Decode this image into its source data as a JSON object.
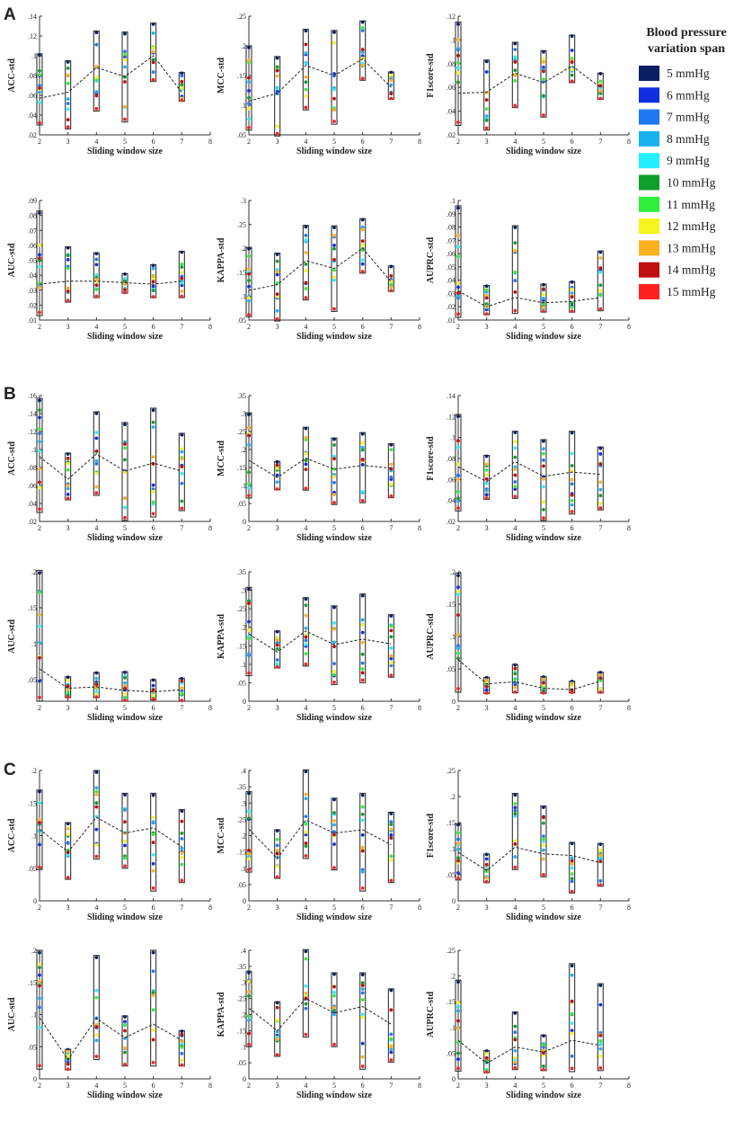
{
  "figure": {
    "panel_labels": [
      "A",
      "B",
      "C"
    ],
    "legend": {
      "title_line1": "Blood pressure",
      "title_line2": "variation span",
      "entries": [
        {
          "label": "5 mmHg",
          "color": "#0a1f64"
        },
        {
          "label": "6 mmHg",
          "color": "#1030e0"
        },
        {
          "label": "7 mmHg",
          "color": "#1f78f0"
        },
        {
          "label": "8 mmHg",
          "color": "#1ab2ee"
        },
        {
          "label": "9 mmHg",
          "color": "#22f0ff"
        },
        {
          "label": "10 mmHg",
          "color": "#0e9e2a"
        },
        {
          "label": "11 mmHg",
          "color": "#2ef03a"
        },
        {
          "label": "12 mmHg",
          "color": "#f6f61e"
        },
        {
          "label": "13 mmHg",
          "color": "#fbb11e"
        },
        {
          "label": "14 mmHg",
          "color": "#c00e0e"
        },
        {
          "label": "15 mmHg",
          "color": "#ff2020"
        }
      ]
    }
  },
  "chart_data": [
    {
      "panel": "A",
      "type": "scatter",
      "title": "",
      "xlabel": "Sliding window size",
      "ylabel": "ACC-std",
      "xlim": [
        2,
        8
      ],
      "xticks": [
        2,
        3,
        4,
        5,
        6,
        7,
        8
      ],
      "ylim": [
        0.02,
        0.14
      ],
      "yticks": [
        0.02,
        0.04,
        0.06,
        0.08,
        0.1,
        0.12,
        0.14
      ],
      "categories": [
        2,
        3,
        4,
        5,
        6,
        7
      ],
      "ranges": [
        [
          0.03,
          0.102
        ],
        [
          0.026,
          0.095
        ],
        [
          0.044,
          0.125
        ],
        [
          0.033,
          0.124
        ],
        [
          0.074,
          0.133
        ],
        [
          0.054,
          0.083
        ]
      ],
      "mean": [
        0.057,
        0.063,
        0.088,
        0.079,
        0.1,
        0.063
      ]
    },
    {
      "panel": "A",
      "type": "scatter",
      "title": "",
      "xlabel": "Sliding window size",
      "ylabel": "MCC-std",
      "xlim": [
        2,
        8
      ],
      "xticks": [
        2,
        3,
        4,
        5,
        6,
        7,
        8
      ],
      "ylim": [
        0.05,
        0.25
      ],
      "yticks": [
        0.05,
        0.1,
        0.15,
        0.2,
        0.25
      ],
      "categories": [
        2,
        3,
        4,
        5,
        6,
        7
      ],
      "ranges": [
        [
          0.058,
          0.2
        ],
        [
          0.048,
          0.182
        ],
        [
          0.092,
          0.228
        ],
        [
          0.068,
          0.226
        ],
        [
          0.142,
          0.242
        ],
        [
          0.11,
          0.156
        ]
      ],
      "mean": [
        0.107,
        0.12,
        0.167,
        0.15,
        0.178,
        0.13
      ]
    },
    {
      "panel": "A",
      "type": "scatter",
      "title": "",
      "xlabel": "Sliding window size",
      "ylabel": "F1score-std",
      "xlim": [
        2,
        8
      ],
      "xticks": [
        2,
        3,
        4,
        5,
        6,
        7,
        8
      ],
      "ylim": [
        0.02,
        0.12
      ],
      "yticks": [
        0.02,
        0.04,
        0.06,
        0.08,
        0.1,
        0.12
      ],
      "categories": [
        2,
        3,
        4,
        5,
        6,
        7
      ],
      "ranges": [
        [
          0.028,
          0.115
        ],
        [
          0.024,
          0.083
        ],
        [
          0.043,
          0.098
        ],
        [
          0.035,
          0.091
        ],
        [
          0.064,
          0.104
        ],
        [
          0.05,
          0.072
        ]
      ],
      "mean": [
        0.055,
        0.056,
        0.072,
        0.064,
        0.078,
        0.06
      ]
    },
    {
      "panel": "A",
      "type": "scatter",
      "title": "",
      "xlabel": "Sliding window size",
      "ylabel": "AUC-std",
      "xlim": [
        2,
        8
      ],
      "xticks": [
        2,
        3,
        4,
        5,
        6,
        7,
        8
      ],
      "ylim": [
        0.01,
        0.09
      ],
      "yticks": [
        0.01,
        0.02,
        0.03,
        0.04,
        0.05,
        0.06,
        0.07,
        0.08,
        0.09
      ],
      "categories": [
        2,
        3,
        4,
        5,
        6,
        7
      ],
      "ranges": [
        [
          0.013,
          0.083
        ],
        [
          0.022,
          0.059
        ],
        [
          0.025,
          0.055
        ],
        [
          0.028,
          0.041
        ],
        [
          0.025,
          0.047
        ],
        [
          0.025,
          0.056
        ]
      ],
      "mean": [
        0.034,
        0.036,
        0.036,
        0.035,
        0.034,
        0.036
      ]
    },
    {
      "panel": "A",
      "type": "scatter",
      "title": "",
      "xlabel": "Sliding window size",
      "ylabel": "KAPPA-std",
      "xlim": [
        2,
        8
      ],
      "xticks": [
        2,
        3,
        4,
        5,
        6,
        7,
        8
      ],
      "ylim": [
        0.05,
        0.3
      ],
      "yticks": [
        0.05,
        0.1,
        0.15,
        0.2,
        0.25,
        0.3
      ],
      "categories": [
        2,
        3,
        4,
        5,
        6,
        7
      ],
      "ranges": [
        [
          0.057,
          0.202
        ],
        [
          0.048,
          0.19
        ],
        [
          0.092,
          0.248
        ],
        [
          0.068,
          0.247
        ],
        [
          0.148,
          0.262
        ],
        [
          0.11,
          0.163
        ]
      ],
      "mean": [
        0.112,
        0.124,
        0.174,
        0.158,
        0.2,
        0.13
      ]
    },
    {
      "panel": "A",
      "type": "scatter",
      "title": "",
      "xlabel": "Sliding window size",
      "ylabel": "AUPRC-std",
      "xlim": [
        2,
        8
      ],
      "xticks": [
        2,
        3,
        4,
        5,
        6,
        7,
        8
      ],
      "ylim": [
        0.01,
        0.1
      ],
      "yticks": [
        0.01,
        0.02,
        0.03,
        0.04,
        0.05,
        0.06,
        0.07,
        0.08,
        0.09,
        0.1
      ],
      "categories": [
        2,
        3,
        4,
        5,
        6,
        7
      ],
      "ranges": [
        [
          0.012,
          0.096
        ],
        [
          0.014,
          0.036
        ],
        [
          0.015,
          0.081
        ],
        [
          0.016,
          0.037
        ],
        [
          0.016,
          0.039
        ],
        [
          0.017,
          0.062
        ]
      ],
      "mean": [
        0.032,
        0.02,
        0.027,
        0.023,
        0.024,
        0.027
      ]
    },
    {
      "panel": "B",
      "type": "scatter",
      "title": "",
      "xlabel": "Sliding window size",
      "ylabel": "ACC-std",
      "xlim": [
        2,
        8
      ],
      "xticks": [
        2,
        3,
        4,
        5,
        6,
        7,
        8
      ],
      "ylim": [
        0.02,
        0.16
      ],
      "yticks": [
        0.02,
        0.04,
        0.06,
        0.08,
        0.1,
        0.12,
        0.14,
        0.16
      ],
      "categories": [
        2,
        3,
        4,
        5,
        6,
        7
      ],
      "ranges": [
        [
          0.03,
          0.157
        ],
        [
          0.044,
          0.096
        ],
        [
          0.049,
          0.142
        ],
        [
          0.021,
          0.13
        ],
        [
          0.025,
          0.146
        ],
        [
          0.032,
          0.118
        ]
      ],
      "mean": [
        0.092,
        0.067,
        0.095,
        0.076,
        0.085,
        0.076
      ]
    },
    {
      "panel": "B",
      "type": "scatter",
      "title": "",
      "xlabel": "Sliding window size",
      "ylabel": "MCC-std",
      "xlim": [
        2,
        8
      ],
      "xticks": [
        2,
        3,
        4,
        5,
        6,
        7,
        8
      ],
      "ylim": [
        0,
        0.35
      ],
      "yticks": [
        0,
        0.05,
        0.1,
        0.15,
        0.2,
        0.25,
        0.3,
        0.35
      ],
      "categories": [
        2,
        3,
        4,
        5,
        6,
        7
      ],
      "ranges": [
        [
          0.065,
          0.302
        ],
        [
          0.088,
          0.167
        ],
        [
          0.087,
          0.262
        ],
        [
          0.047,
          0.232
        ],
        [
          0.052,
          0.247
        ],
        [
          0.066,
          0.216
        ]
      ],
      "mean": [
        0.17,
        0.122,
        0.176,
        0.145,
        0.156,
        0.148
      ]
    },
    {
      "panel": "B",
      "type": "scatter",
      "title": "",
      "xlabel": "Sliding window size",
      "ylabel": "F1score-std",
      "xlim": [
        2,
        8
      ],
      "xticks": [
        2,
        3,
        4,
        5,
        6,
        7,
        8
      ],
      "ylim": [
        0.02,
        0.14
      ],
      "yticks": [
        0.02,
        0.04,
        0.06,
        0.08,
        0.1,
        0.12,
        0.14
      ],
      "categories": [
        2,
        3,
        4,
        5,
        6,
        7
      ],
      "ranges": [
        [
          0.03,
          0.122
        ],
        [
          0.041,
          0.083
        ],
        [
          0.042,
          0.106
        ],
        [
          0.021,
          0.098
        ],
        [
          0.027,
          0.106
        ],
        [
          0.031,
          0.091
        ]
      ],
      "mean": [
        0.072,
        0.058,
        0.077,
        0.063,
        0.067,
        0.065
      ]
    },
    {
      "panel": "B",
      "type": "scatter",
      "title": "",
      "xlabel": "Sliding window size",
      "ylabel": "AUC-std",
      "xlim": [
        2,
        8
      ],
      "xticks": [
        2,
        3,
        4,
        5,
        6,
        7,
        8
      ],
      "ylim": [
        0.02,
        0.2
      ],
      "yticks": [
        0.05,
        0.1,
        0.15,
        0.2
      ],
      "categories": [
        2,
        3,
        4,
        5,
        6,
        7
      ],
      "ranges": [
        [
          0.02,
          0.202
        ],
        [
          0.025,
          0.054
        ],
        [
          0.025,
          0.06
        ],
        [
          0.02,
          0.061
        ],
        [
          0.022,
          0.05
        ],
        [
          0.02,
          0.052
        ]
      ],
      "mean": [
        0.065,
        0.038,
        0.04,
        0.035,
        0.033,
        0.036
      ]
    },
    {
      "panel": "B",
      "type": "scatter",
      "title": "",
      "xlabel": "Sliding window size",
      "ylabel": "KAPPA-std",
      "xlim": [
        2,
        8
      ],
      "xticks": [
        2,
        3,
        4,
        5,
        6,
        7,
        8
      ],
      "ylim": [
        0,
        0.35
      ],
      "yticks": [
        0,
        0.05,
        0.1,
        0.15,
        0.2,
        0.25,
        0.3,
        0.35
      ],
      "categories": [
        2,
        3,
        4,
        5,
        6,
        7
      ],
      "ranges": [
        [
          0.069,
          0.308
        ],
        [
          0.09,
          0.19
        ],
        [
          0.095,
          0.28
        ],
        [
          0.045,
          0.258
        ],
        [
          0.05,
          0.29
        ],
        [
          0.065,
          0.234
        ]
      ],
      "mean": [
        0.182,
        0.133,
        0.19,
        0.153,
        0.168,
        0.155
      ]
    },
    {
      "panel": "B",
      "type": "scatter",
      "title": "",
      "xlabel": "Sliding window size",
      "ylabel": "AUPRC-std",
      "xlim": [
        2,
        8
      ],
      "xticks": [
        2,
        3,
        4,
        5,
        6,
        7,
        8
      ],
      "ylim": [
        0,
        0.2
      ],
      "yticks": [
        0,
        0.05,
        0.1,
        0.15,
        0.2
      ],
      "categories": [
        2,
        3,
        4,
        5,
        6,
        7
      ],
      "ranges": [
        [
          0.014,
          0.198
        ],
        [
          0.012,
          0.037
        ],
        [
          0.013,
          0.057
        ],
        [
          0.012,
          0.038
        ],
        [
          0.013,
          0.031
        ],
        [
          0.013,
          0.045
        ]
      ],
      "mean": [
        0.064,
        0.027,
        0.03,
        0.02,
        0.018,
        0.031
      ]
    },
    {
      "panel": "C",
      "type": "scatter",
      "title": "",
      "xlabel": "Sliding window size",
      "ylabel": "ACC-std",
      "xlim": [
        2,
        8
      ],
      "xticks": [
        2,
        3,
        4,
        5,
        6,
        7,
        8
      ],
      "ylim": [
        0,
        0.2
      ],
      "yticks": [
        0,
        0.05,
        0.1,
        0.15,
        0.2
      ],
      "categories": [
        2,
        3,
        4,
        5,
        6,
        7
      ],
      "ranges": [
        [
          0.048,
          0.17
        ],
        [
          0.033,
          0.12
        ],
        [
          0.064,
          0.2
        ],
        [
          0.05,
          0.165
        ],
        [
          0.015,
          0.165
        ],
        [
          0.028,
          0.14
        ]
      ],
      "mean": [
        0.11,
        0.075,
        0.128,
        0.104,
        0.112,
        0.083
      ]
    },
    {
      "panel": "C",
      "type": "scatter",
      "title": "",
      "xlabel": "Sliding window size",
      "ylabel": "MCC-std",
      "xlim": [
        2,
        8
      ],
      "xticks": [
        2,
        3,
        4,
        5,
        6,
        7,
        8
      ],
      "ylim": [
        0,
        0.4
      ],
      "yticks": [
        0,
        0.05,
        0.1,
        0.15,
        0.2,
        0.25,
        0.3,
        0.35,
        0.4
      ],
      "categories": [
        2,
        3,
        4,
        5,
        6,
        7
      ],
      "ranges": [
        [
          0.088,
          0.335
        ],
        [
          0.069,
          0.218
        ],
        [
          0.13,
          0.402
        ],
        [
          0.095,
          0.315
        ],
        [
          0.03,
          0.33
        ],
        [
          0.056,
          0.272
        ]
      ],
      "mean": [
        0.22,
        0.13,
        0.248,
        0.208,
        0.218,
        0.172
      ]
    },
    {
      "panel": "C",
      "type": "scatter",
      "title": "",
      "xlabel": "Sliding window size",
      "ylabel": "F1score-std",
      "xlim": [
        2,
        8
      ],
      "xticks": [
        2,
        3,
        4,
        5,
        6,
        7,
        8
      ],
      "ylim": [
        0,
        0.25
      ],
      "yticks": [
        0,
        0.05,
        0.1,
        0.15,
        0.2,
        0.25
      ],
      "categories": [
        2,
        3,
        4,
        5,
        6,
        7
      ],
      "ranges": [
        [
          0.04,
          0.148
        ],
        [
          0.035,
          0.09
        ],
        [
          0.06,
          0.206
        ],
        [
          0.046,
          0.182
        ],
        [
          0.015,
          0.112
        ],
        [
          0.028,
          0.11
        ]
      ],
      "mean": [
        0.093,
        0.058,
        0.103,
        0.09,
        0.087,
        0.073
      ]
    },
    {
      "panel": "C",
      "type": "scatter",
      "title": "",
      "xlabel": "Sliding window size",
      "ylabel": "AUC-std",
      "xlim": [
        2,
        8
      ],
      "xticks": [
        2,
        3,
        4,
        5,
        6,
        7,
        8
      ],
      "ylim": [
        0,
        0.2
      ],
      "yticks": [
        0,
        0.05,
        0.1,
        0.15,
        0.2
      ],
      "categories": [
        2,
        3,
        4,
        5,
        6,
        7
      ],
      "ranges": [
        [
          0.015,
          0.2
        ],
        [
          0.014,
          0.046
        ],
        [
          0.03,
          0.192
        ],
        [
          0.02,
          0.098
        ],
        [
          0.02,
          0.2
        ],
        [
          0.02,
          0.075
        ]
      ],
      "mean": [
        0.095,
        0.03,
        0.094,
        0.064,
        0.085,
        0.06
      ]
    },
    {
      "panel": "C",
      "type": "scatter",
      "title": "",
      "xlabel": "Sliding window size",
      "ylabel": "KAPPA-std",
      "xlim": [
        2,
        8
      ],
      "xticks": [
        2,
        3,
        4,
        5,
        6,
        7,
        8
      ],
      "ylim": [
        0,
        0.4
      ],
      "yticks": [
        0,
        0.05,
        0.1,
        0.15,
        0.2,
        0.25,
        0.3,
        0.35,
        0.4
      ],
      "categories": [
        2,
        3,
        4,
        5,
        6,
        7
      ],
      "ranges": [
        [
          0.1,
          0.335
        ],
        [
          0.07,
          0.24
        ],
        [
          0.13,
          0.402
        ],
        [
          0.1,
          0.33
        ],
        [
          0.03,
          0.33
        ],
        [
          0.052,
          0.28
        ]
      ],
      "mean": [
        0.22,
        0.15,
        0.25,
        0.205,
        0.225,
        0.17
      ]
    },
    {
      "panel": "C",
      "type": "scatter",
      "title": "",
      "xlabel": "Sliding window size",
      "ylabel": "AUPRC-std",
      "xlim": [
        2,
        8
      ],
      "xticks": [
        2,
        3,
        4,
        5,
        6,
        7,
        8
      ],
      "ylim": [
        0,
        0.25
      ],
      "yticks": [
        0,
        0.05,
        0.1,
        0.15,
        0.2,
        0.25
      ],
      "categories": [
        2,
        3,
        4,
        5,
        6,
        7
      ],
      "ranges": [
        [
          0.015,
          0.192
        ],
        [
          0.012,
          0.055
        ],
        [
          0.018,
          0.13
        ],
        [
          0.016,
          0.085
        ],
        [
          0.014,
          0.224
        ],
        [
          0.016,
          0.185
        ]
      ],
      "mean": [
        0.075,
        0.03,
        0.062,
        0.052,
        0.075,
        0.065
      ]
    }
  ]
}
